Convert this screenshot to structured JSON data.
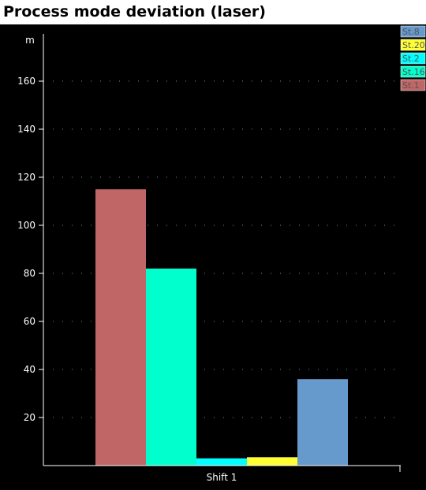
{
  "title": "Process mode deviation (laser)",
  "chart_data": {
    "type": "bar",
    "title": "Process mode deviation (laser)",
    "ylabel": "m",
    "xlabel": "",
    "categories": [
      "Shift 1"
    ],
    "ylim": [
      0,
      180
    ],
    "yticks": [
      20,
      40,
      60,
      80,
      100,
      120,
      140,
      160
    ],
    "grid": "horizontal dotted",
    "legend_position": "top-right",
    "series": [
      {
        "name": "St.1",
        "color": "#c06666",
        "values": [
          115
        ]
      },
      {
        "name": "St.16",
        "color": "#00ffcc",
        "values": [
          82
        ]
      },
      {
        "name": "St.2",
        "color": "#00ffff",
        "values": [
          3
        ]
      },
      {
        "name": "St.20",
        "color": "#ffff33",
        "values": [
          3.5
        ]
      },
      {
        "name": "St.8",
        "color": "#6699cc",
        "values": [
          36
        ]
      }
    ],
    "legend_order": [
      "St.8",
      "St.20",
      "St.2",
      "St.16",
      "St.1"
    ]
  }
}
